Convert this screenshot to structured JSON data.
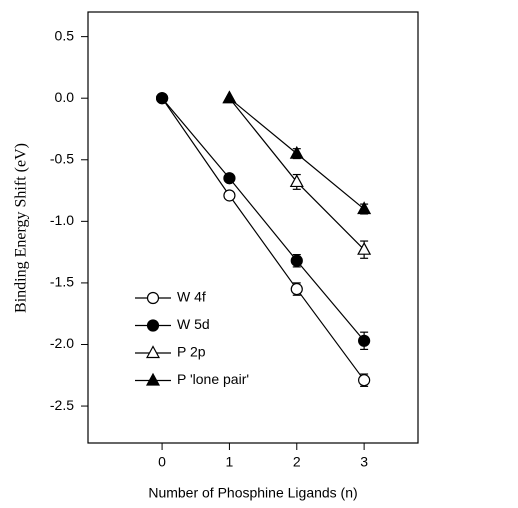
{
  "chart_data": {
    "type": "line",
    "xlabel": "Number of Phosphine Ligands (n)",
    "ylabel": "Binding Energy Shift (eV)",
    "xlim": [
      -1.1,
      3.8
    ],
    "xticks": [
      0,
      1,
      2,
      3
    ],
    "ylim": [
      -2.8,
      0.7
    ],
    "yticks": [
      {
        "value": 0.5,
        "label": "0.5"
      },
      {
        "value": 0,
        "label": "0.0"
      },
      {
        "value": -0.5,
        "label": "-0.5"
      },
      {
        "value": -1,
        "label": "-1.0"
      },
      {
        "value": -1.5,
        "label": "-1.5"
      },
      {
        "value": -2,
        "label": "-2.0"
      },
      {
        "value": -2.5,
        "label": "-2.5"
      }
    ],
    "legend": "lower left",
    "series": [
      {
        "name": "W 4f",
        "color": "#000000",
        "marker": "circle",
        "filled": false,
        "x": [
          0,
          1,
          2,
          3
        ],
        "values": [
          0,
          -0.79,
          -1.55,
          -2.29
        ],
        "errors": [
          null,
          null,
          0.05,
          0.05
        ]
      },
      {
        "name": "W 5d",
        "color": "#000000",
        "marker": "circle",
        "filled": true,
        "x": [
          0,
          1,
          2,
          3
        ],
        "values": [
          0,
          -0.65,
          -1.32,
          -1.97
        ],
        "errors": [
          null,
          null,
          0.05,
          0.07
        ]
      },
      {
        "name": "P 2p",
        "color": "#000000",
        "marker": "triangle",
        "filled": false,
        "x": [
          1,
          2,
          3
        ],
        "values": [
          0,
          -0.68,
          -1.23
        ],
        "errors": [
          null,
          0.06,
          0.07
        ]
      },
      {
        "name": "P 'lone pair'",
        "color": "#000000",
        "marker": "triangle",
        "filled": true,
        "x": [
          1,
          2,
          3
        ],
        "values": [
          0,
          -0.45,
          -0.9
        ],
        "errors": [
          null,
          0.04,
          0.04
        ]
      }
    ]
  }
}
